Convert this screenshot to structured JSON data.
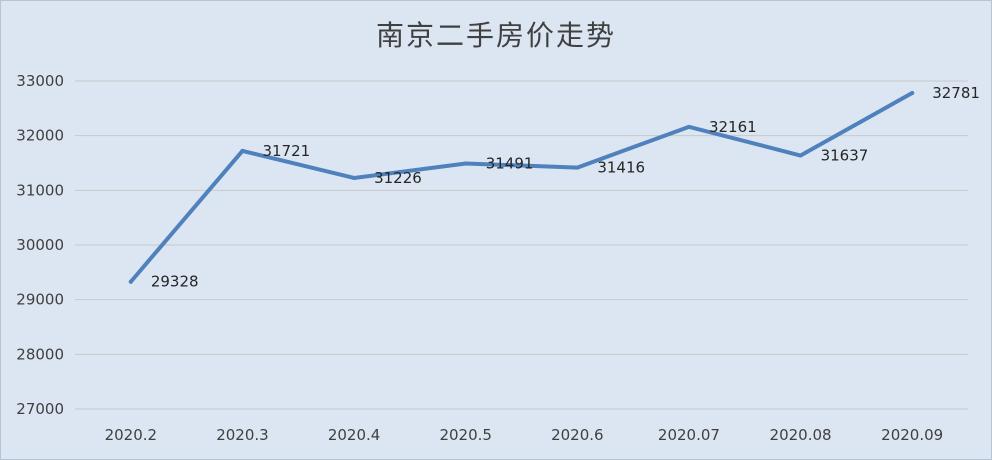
{
  "chart_data": {
    "type": "line",
    "title": "南京二手房价走势",
    "xlabel": "",
    "ylabel": "",
    "categories": [
      "2020.2",
      "2020.3",
      "2020.4",
      "2020.5",
      "2020.6",
      "2020.07",
      "2020.08",
      "2020.09"
    ],
    "series": [
      {
        "values": [
          29328,
          31721,
          31226,
          31491,
          31416,
          32161,
          31637,
          32781
        ],
        "color": "#4f81bd"
      }
    ],
    "ylim": [
      27000,
      33000
    ],
    "yticks": [
      27000,
      28000,
      29000,
      30000,
      31000,
      32000,
      33000
    ],
    "grid": true,
    "legend": "none",
    "data_labels": true
  }
}
